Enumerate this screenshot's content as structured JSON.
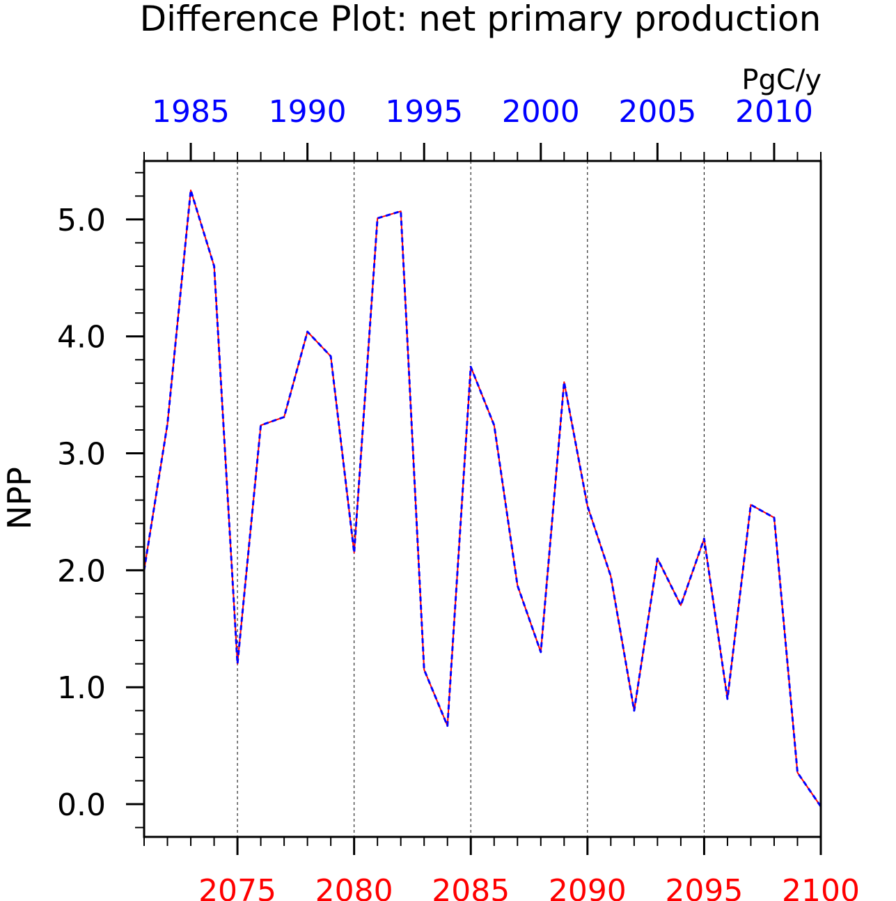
{
  "chart_data": {
    "type": "line",
    "title": "Difference Plot: net primary production",
    "units": "PgC/y",
    "ylabel": "NPP",
    "xlabel": "",
    "ylim": [
      -0.28,
      5.5
    ],
    "yticks": [
      0.0,
      1.0,
      2.0,
      3.0,
      4.0,
      5.0
    ],
    "ytick_labels": [
      "0.0",
      "1.0",
      "2.0",
      "3.0",
      "4.0",
      "5.0"
    ],
    "x_bottom": {
      "color": "#ff0000",
      "range": [
        2071,
        2100
      ],
      "ticks": [
        2075,
        2080,
        2085,
        2090,
        2095,
        2100
      ],
      "tick_labels": [
        "2075",
        "2080",
        "2085",
        "2090",
        "2095",
        "2100"
      ]
    },
    "x_top": {
      "color": "#0000ff",
      "range": [
        1983,
        2012
      ],
      "ticks": [
        1985,
        1990,
        1995,
        2000,
        2005,
        2010
      ],
      "tick_labels": [
        "1985",
        "1990",
        "1995",
        "2000",
        "2005",
        "2010"
      ]
    },
    "grid": "vertical dashed at bottom-axis major ticks",
    "x": [
      2071,
      2072,
      2073,
      2074,
      2075,
      2076,
      2077,
      2078,
      2079,
      2080,
      2081,
      2082,
      2083,
      2084,
      2085,
      2086,
      2087,
      2088,
      2089,
      2090,
      2091,
      2092,
      2093,
      2094,
      2095,
      2096,
      2097,
      2098,
      2099,
      2100
    ],
    "series": [
      {
        "line_color": "#ff0000",
        "dash_color": "#0000ff",
        "values": [
          2.0,
          3.25,
          5.25,
          4.6,
          1.2,
          3.24,
          3.31,
          4.04,
          3.83,
          2.15,
          5.01,
          5.07,
          1.15,
          0.67,
          3.74,
          3.24,
          1.87,
          1.3,
          3.61,
          2.55,
          1.95,
          0.8,
          2.1,
          1.7,
          2.27,
          0.9,
          2.56,
          2.45,
          0.27,
          -0.02
        ]
      }
    ]
  }
}
